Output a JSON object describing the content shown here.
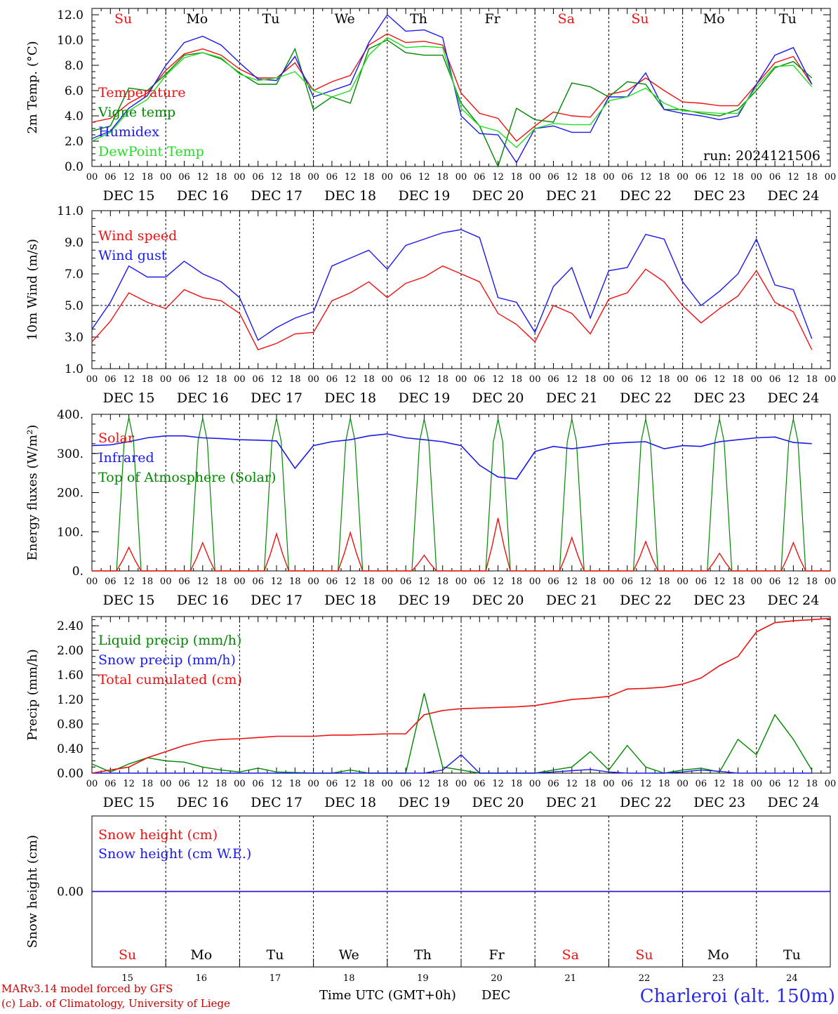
{
  "colors": {
    "red": "#ee1111",
    "green": "#008800",
    "blue": "#1a1aee",
    "lightgreen": "#22dd22",
    "darkgreen": "#0f8f0f"
  },
  "axis_hours": [
    "00",
    "06",
    "12",
    "18"
  ],
  "days": [
    "DEC 15",
    "DEC 16",
    "DEC 17",
    "DEC 18",
    "DEC 19",
    "DEC 20",
    "DEC 21",
    "DEC 22",
    "DEC 23",
    "DEC 24"
  ],
  "weekdays": [
    {
      "label": "Su",
      "color": "red"
    },
    {
      "label": "Mo",
      "color": "black"
    },
    {
      "label": "Tu",
      "color": "black"
    },
    {
      "label": "We",
      "color": "black"
    },
    {
      "label": "Th",
      "color": "black"
    },
    {
      "label": "Fr",
      "color": "black"
    },
    {
      "label": "Sa",
      "color": "red"
    },
    {
      "label": "Su",
      "color": "red"
    },
    {
      "label": "Mo",
      "color": "black"
    },
    {
      "label": "Tu",
      "color": "black"
    }
  ],
  "day_numbers": [
    "15",
    "16",
    "17",
    "18",
    "19",
    "20",
    "21",
    "22",
    "23",
    "24"
  ],
  "footer": {
    "model": "MARv3.14 model forced by GFS",
    "lab": "(c) Lab. of Climatology, University of Liege",
    "xaxis": "Time UTC (GMT+0h)",
    "month": "DEC",
    "station": "Charleroi (alt. 150m)"
  },
  "chart_data": [
    {
      "type": "line",
      "ylabel": "2m Temp. (°C)",
      "ylim": [
        0,
        12.5
      ],
      "yticks": [
        "0.0",
        "2.0",
        "4.0",
        "6.0",
        "8.0",
        "10.0",
        "12.0"
      ],
      "annotation": "run: 2024121506",
      "x_unit": "hours since DEC 15 00 UTC",
      "series": [
        {
          "name": "Temperature",
          "color": "red",
          "x": [
            0,
            6,
            12,
            18,
            24,
            30,
            36,
            42,
            48,
            54,
            60,
            66,
            72,
            78,
            84,
            90,
            96,
            102,
            108,
            114,
            120,
            126,
            132,
            138,
            144,
            150,
            156,
            162,
            168,
            174,
            180,
            186,
            192,
            198,
            204,
            210,
            216,
            222,
            228,
            234
          ],
          "y": [
            3.5,
            3.8,
            5.0,
            5.8,
            7.6,
            8.9,
            9.3,
            8.8,
            7.7,
            7.0,
            7.0,
            8.2,
            6.0,
            6.7,
            7.2,
            9.6,
            10.5,
            9.8,
            9.9,
            9.6,
            5.8,
            4.2,
            3.8,
            2.0,
            3.2,
            4.3,
            4.0,
            3.9,
            5.7,
            6.0,
            7.0,
            6.0,
            5.1,
            5.0,
            4.8,
            4.8,
            6.5,
            8.2,
            8.7,
            6.5
          ]
        },
        {
          "name": "Vigne temp",
          "color": "green",
          "x": [
            0,
            6,
            12,
            18,
            24,
            30,
            36,
            42,
            48,
            54,
            60,
            66,
            72,
            78,
            84,
            90,
            96,
            102,
            108,
            114,
            120,
            126,
            132,
            138,
            144,
            150,
            156,
            162,
            168,
            174,
            180,
            186,
            192,
            198,
            204,
            210,
            216,
            222,
            228,
            234
          ],
          "y": [
            2.8,
            3.2,
            6.2,
            6.0,
            7.3,
            8.8,
            9.0,
            8.5,
            7.4,
            6.5,
            6.5,
            9.3,
            4.5,
            5.5,
            5.0,
            9.3,
            10.0,
            9.0,
            8.8,
            8.8,
            5.0,
            3.2,
            0.0,
            4.6,
            3.7,
            3.5,
            6.6,
            6.3,
            5.5,
            6.7,
            6.5,
            4.5,
            4.5,
            4.2,
            4.0,
            4.5,
            6.0,
            7.8,
            8.3,
            7.0
          ]
        },
        {
          "name": "Humidex",
          "color": "blue",
          "x": [
            0,
            6,
            12,
            18,
            24,
            30,
            36,
            42,
            48,
            54,
            60,
            66,
            72,
            78,
            84,
            90,
            96,
            102,
            108,
            114,
            120,
            126,
            132,
            138,
            144,
            150,
            156,
            162,
            168,
            174,
            180,
            186,
            192,
            198,
            204,
            210,
            216,
            222,
            228,
            234
          ],
          "y": [
            2.2,
            2.8,
            4.6,
            5.6,
            8.0,
            9.8,
            10.3,
            9.6,
            8.2,
            6.9,
            6.8,
            8.7,
            5.5,
            6.0,
            6.5,
            9.8,
            12.0,
            10.7,
            10.8,
            10.2,
            4.0,
            2.6,
            2.5,
            0.3,
            3.0,
            3.2,
            2.7,
            2.7,
            5.5,
            5.5,
            7.4,
            4.5,
            4.2,
            4.0,
            3.7,
            4.0,
            6.5,
            8.8,
            9.4,
            6.5
          ]
        },
        {
          "name": "DewPoint Temp",
          "color": "lightgreen",
          "x": [
            0,
            6,
            12,
            18,
            24,
            30,
            36,
            42,
            48,
            54,
            60,
            66,
            72,
            78,
            84,
            90,
            96,
            102,
            108,
            114,
            120,
            126,
            132,
            138,
            144,
            150,
            156,
            162,
            168,
            174,
            180,
            186,
            192,
            198,
            204,
            210,
            216,
            222,
            228,
            234
          ],
          "y": [
            2.0,
            2.7,
            4.4,
            5.3,
            7.2,
            8.6,
            9.0,
            8.6,
            7.3,
            6.8,
            7.0,
            7.5,
            6.0,
            5.5,
            6.0,
            8.8,
            10.2,
            9.4,
            9.5,
            9.4,
            4.6,
            3.2,
            2.8,
            1.5,
            3.0,
            3.4,
            3.3,
            3.3,
            5.2,
            5.5,
            6.2,
            5.0,
            4.4,
            4.3,
            4.2,
            4.2,
            6.3,
            7.9,
            8.0,
            6.3
          ]
        }
      ]
    },
    {
      "type": "line",
      "ylabel": "10m Wind (m/s)",
      "ylim": [
        1,
        11
      ],
      "yticks": [
        "1.0",
        "3.0",
        "5.0",
        "7.0",
        "9.0",
        "11.0"
      ],
      "reference_line": 5.0,
      "series": [
        {
          "name": "Wind speed",
          "color": "red",
          "x": [
            0,
            6,
            12,
            18,
            24,
            30,
            36,
            42,
            48,
            54,
            60,
            66,
            72,
            78,
            84,
            90,
            96,
            102,
            108,
            114,
            120,
            126,
            132,
            138,
            144,
            150,
            156,
            162,
            168,
            174,
            180,
            186,
            192,
            198,
            204,
            210,
            216,
            222,
            228,
            234
          ],
          "y": [
            2.7,
            4.0,
            5.8,
            5.2,
            4.8,
            6.0,
            5.5,
            5.3,
            4.5,
            2.2,
            2.6,
            3.2,
            3.3,
            5.3,
            5.8,
            6.5,
            5.5,
            6.4,
            6.8,
            7.5,
            7.0,
            6.5,
            4.5,
            3.8,
            2.7,
            5.0,
            4.5,
            3.2,
            5.4,
            5.8,
            7.3,
            6.5,
            5.0,
            3.9,
            4.8,
            5.6,
            7.2,
            5.2,
            4.6,
            2.2
          ]
        },
        {
          "name": "Wind gust",
          "color": "blue",
          "x": [
            0,
            6,
            12,
            18,
            24,
            30,
            36,
            42,
            48,
            54,
            60,
            66,
            72,
            78,
            84,
            90,
            96,
            102,
            108,
            114,
            120,
            126,
            132,
            138,
            144,
            150,
            156,
            162,
            168,
            174,
            180,
            186,
            192,
            198,
            204,
            210,
            216,
            222,
            228,
            234
          ],
          "y": [
            3.5,
            5.2,
            7.5,
            6.8,
            6.8,
            7.8,
            7.0,
            6.5,
            5.5,
            2.8,
            3.6,
            4.2,
            4.6,
            7.5,
            8.0,
            8.5,
            7.3,
            8.8,
            9.2,
            9.6,
            9.8,
            9.3,
            5.5,
            5.2,
            3.3,
            6.2,
            7.4,
            4.2,
            7.2,
            7.4,
            9.5,
            9.2,
            6.5,
            5.0,
            5.9,
            7.0,
            9.2,
            6.3,
            6.0,
            2.9
          ]
        }
      ]
    },
    {
      "type": "line",
      "ylabel": "Energy fluxes (W/m²)",
      "ylim": [
        0,
        400
      ],
      "yticks": [
        "0.",
        "100.",
        "200.",
        "300.",
        "400."
      ],
      "series": [
        {
          "name": "Solar",
          "color": "red",
          "peaks": [
            60,
            72,
            95,
            98,
            40,
            135,
            85,
            75,
            45,
            72
          ]
        },
        {
          "name": "Infrared",
          "color": "blue",
          "x": [
            0,
            6,
            12,
            18,
            24,
            30,
            36,
            42,
            48,
            54,
            60,
            66,
            72,
            78,
            84,
            90,
            96,
            102,
            108,
            114,
            120,
            126,
            132,
            138,
            144,
            150,
            156,
            162,
            168,
            174,
            180,
            186,
            192,
            198,
            204,
            210,
            216,
            222,
            228,
            234
          ],
          "y": [
            320,
            322,
            330,
            340,
            345,
            345,
            340,
            338,
            335,
            334,
            332,
            262,
            320,
            330,
            335,
            345,
            350,
            340,
            335,
            330,
            320,
            270,
            240,
            235,
            305,
            318,
            312,
            318,
            325,
            328,
            330,
            312,
            320,
            318,
            330,
            335,
            340,
            342,
            328,
            325
          ]
        },
        {
          "name": "Top of Atmosphere (Solar)",
          "color": "green",
          "peaks": [
            392,
            390,
            390,
            390,
            388,
            388,
            388,
            388,
            388,
            388
          ]
        }
      ]
    },
    {
      "type": "line",
      "ylabel": "Precip (mm/h)",
      "ylim": [
        0,
        2.55
      ],
      "yticks": [
        "0.00",
        "0.40",
        "0.80",
        "1.20",
        "1.60",
        "2.00",
        "2.40"
      ],
      "series": [
        {
          "name": "Liquid precip (mm/h)",
          "color": "green",
          "x": [
            0,
            6,
            12,
            18,
            24,
            30,
            36,
            42,
            48,
            54,
            60,
            66,
            72,
            78,
            84,
            90,
            96,
            102,
            108,
            114,
            120,
            126,
            132,
            138,
            144,
            150,
            156,
            162,
            168,
            174,
            180,
            186,
            192,
            198,
            204,
            210,
            216,
            222,
            228,
            234
          ],
          "y": [
            0.15,
            0.02,
            0.15,
            0.25,
            0.2,
            0.18,
            0.1,
            0.05,
            0.02,
            0.08,
            0.02,
            0.01,
            0.0,
            0.0,
            0.05,
            0.0,
            0.0,
            0.0,
            1.3,
            0.1,
            0.05,
            0.0,
            0.0,
            0.0,
            0.0,
            0.05,
            0.1,
            0.35,
            0.05,
            0.45,
            0.1,
            0.0,
            0.05,
            0.08,
            0.02,
            0.55,
            0.3,
            0.95,
            0.55,
            0.05
          ]
        },
        {
          "name": "Snow precip (mm/h)",
          "color": "blue",
          "x": [
            0,
            6,
            12,
            18,
            24,
            30,
            36,
            42,
            48,
            54,
            60,
            66,
            72,
            78,
            84,
            90,
            96,
            102,
            108,
            114,
            120,
            126,
            132,
            138,
            144,
            150,
            156,
            162,
            168,
            174,
            180,
            186,
            192,
            198,
            204,
            210,
            216,
            222,
            228,
            234
          ],
          "y": [
            0,
            0,
            0,
            0,
            0,
            0,
            0,
            0,
            0,
            0,
            0,
            0,
            0,
            0,
            0,
            0,
            0,
            0,
            0,
            0.05,
            0.3,
            0,
            0,
            0,
            0,
            0.02,
            0.04,
            0.06,
            0.02,
            0,
            0,
            0,
            0.02,
            0.05,
            0.03,
            0,
            0,
            0,
            0,
            0
          ]
        },
        {
          "name": "Total cumulated (cm)",
          "color": "red",
          "x": [
            0,
            6,
            12,
            18,
            24,
            30,
            36,
            42,
            48,
            54,
            60,
            66,
            72,
            78,
            84,
            90,
            96,
            102,
            108,
            114,
            120,
            126,
            132,
            138,
            144,
            150,
            156,
            162,
            168,
            174,
            180,
            186,
            192,
            198,
            204,
            210,
            216,
            222,
            228,
            234,
            240
          ],
          "y": [
            0.0,
            0.05,
            0.1,
            0.25,
            0.35,
            0.45,
            0.52,
            0.55,
            0.56,
            0.58,
            0.6,
            0.6,
            0.6,
            0.62,
            0.62,
            0.63,
            0.64,
            0.64,
            0.95,
            1.02,
            1.05,
            1.06,
            1.07,
            1.08,
            1.1,
            1.15,
            1.2,
            1.22,
            1.25,
            1.37,
            1.38,
            1.4,
            1.45,
            1.55,
            1.75,
            1.9,
            2.3,
            2.45,
            2.48,
            2.5,
            2.52
          ]
        }
      ]
    },
    {
      "type": "line",
      "ylabel": "Snow height (cm)",
      "ylim": [
        -1,
        1
      ],
      "yticks": [
        "0.00"
      ],
      "series": [
        {
          "name": "Snow height (cm)",
          "color": "red",
          "x": [
            0,
            240
          ],
          "y": [
            0,
            0
          ]
        },
        {
          "name": "Snow height (cm W.E.)",
          "color": "blue",
          "x": [
            0,
            240
          ],
          "y": [
            0,
            0
          ]
        }
      ]
    }
  ]
}
